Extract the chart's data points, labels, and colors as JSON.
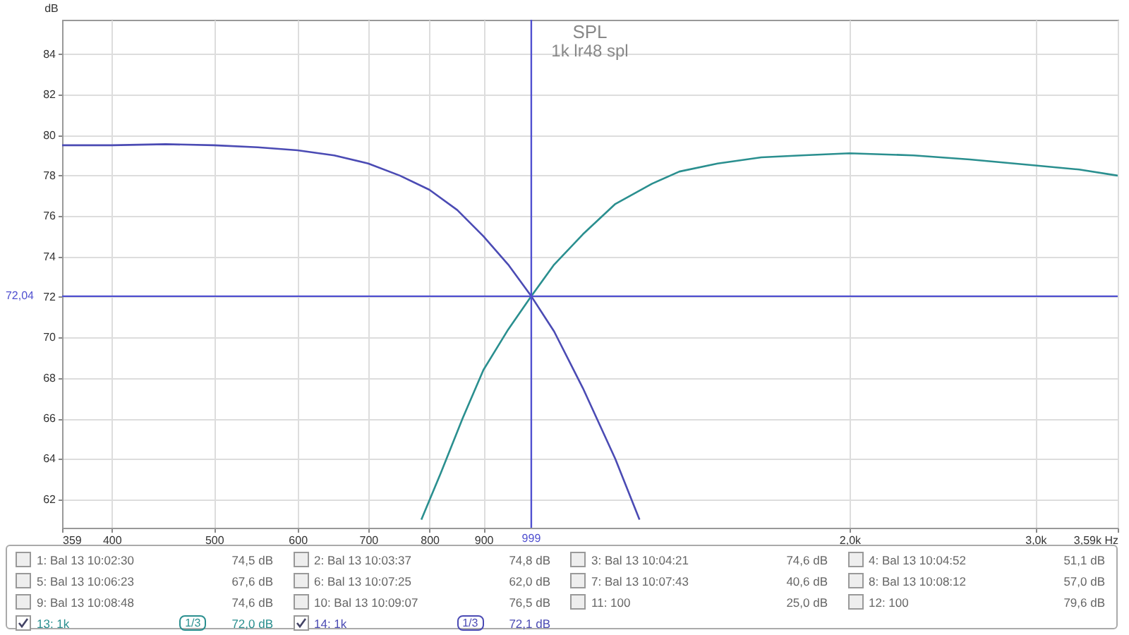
{
  "chart_data": {
    "type": "line",
    "title": "SPL",
    "subtitle": "1k lr48 spl",
    "ylabel": "dB",
    "log": "x",
    "xlim": [
      359,
      3590
    ],
    "xticks": [
      359,
      400,
      500,
      600,
      700,
      800,
      900,
      {
        "value": 2000,
        "label": "2,0k"
      },
      {
        "value": 3000,
        "label": "3,0k"
      },
      {
        "value": 3590,
        "label": "3,59k Hz"
      }
    ],
    "ylim": [
      60.6,
      85.7
    ],
    "yticks": [
      62,
      64,
      66,
      68,
      70,
      72,
      74,
      76,
      78,
      80,
      82,
      84
    ],
    "grid": true,
    "legend": "bottom",
    "marker": "none",
    "line_style": "solid",
    "series": [
      {
        "name": "13: 1k",
        "color": "#2a8f8f",
        "x": [
          786,
          820,
          860,
          900,
          950,
          999,
          1050,
          1118,
          1200,
          1300,
          1380,
          1500,
          1650,
          1800,
          2000,
          2300,
          2600,
          3000,
          3300,
          3590
        ],
        "values": [
          61.0,
          63.3,
          66.0,
          68.4,
          70.4,
          72.04,
          73.6,
          75.1,
          76.6,
          77.6,
          78.2,
          78.6,
          78.9,
          79.0,
          79.1,
          79.0,
          78.8,
          78.5,
          78.3,
          78.0
        ]
      },
      {
        "name": "14: 1k",
        "color": "#4b4bb4",
        "x": [
          359,
          400,
          450,
          500,
          550,
          600,
          650,
          700,
          750,
          800,
          850,
          900,
          950,
          999,
          1050,
          1118,
          1200,
          1265
        ],
        "values": [
          79.5,
          79.5,
          79.55,
          79.5,
          79.4,
          79.25,
          79.0,
          78.6,
          78.0,
          77.3,
          76.3,
          75.0,
          73.6,
          72.04,
          70.3,
          67.5,
          64.0,
          61.0
        ]
      }
    ],
    "ref_lines": [
      {
        "axis": "x",
        "value": 999,
        "label": "999",
        "color": "#5050d0"
      },
      {
        "axis": "y",
        "value": 72.04,
        "label": "72,04",
        "color": "#5050d0"
      }
    ],
    "annotations": [
      "1: Bal 13 10:02:30",
      "74,5 dB",
      "2: Bal 13 10:03:37",
      "74,8 dB",
      "3: Bal 13 10:04:21",
      "74,6 dB",
      "4: Bal 13 10:04:52",
      "51,1 dB",
      "5: Bal 13 10:06:23",
      "67,6 dB",
      "6: Bal 13 10:07:25",
      "62,0 dB",
      "7: Bal 13 10:07:43",
      "40,6 dB",
      "8: Bal 13 10:08:12",
      "57,0 dB",
      "9: Bal 13 10:08:48",
      "74,6 dB",
      "10: Bal 13 10:09:07",
      "76,5 dB",
      "11: 100",
      "25,0 dB",
      "12: 100",
      "79,6 dB",
      "72,0 dB",
      "72,1 dB",
      "1/3",
      "1/3"
    ]
  }
}
